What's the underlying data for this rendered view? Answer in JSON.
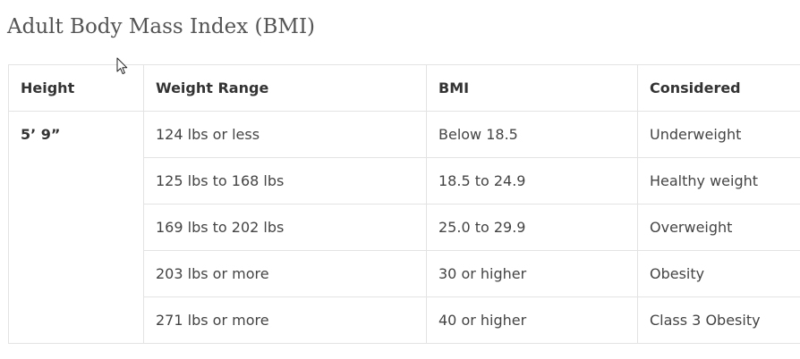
{
  "title": "Adult Body Mass Index (BMI)",
  "table": {
    "headers": [
      "Height",
      "Weight Range",
      "BMI",
      "Considered"
    ],
    "height_value": "5’ 9”",
    "rows": [
      {
        "weight": "124 lbs or less",
        "bmi": "Below 18.5",
        "considered": "Underweight"
      },
      {
        "weight": "125 lbs to 168 lbs",
        "bmi": "18.5 to 24.9",
        "considered": "Healthy weight"
      },
      {
        "weight": "169 lbs to 202 lbs",
        "bmi": "25.0 to 29.9",
        "considered": "Overweight"
      },
      {
        "weight": "203 lbs or more",
        "bmi": "30 or higher",
        "considered": "Obesity"
      },
      {
        "weight": "271 lbs or more",
        "bmi": "40 or higher",
        "considered": "Class 3 Obesity"
      }
    ]
  },
  "cursor_icon": "arrow-cursor-icon"
}
